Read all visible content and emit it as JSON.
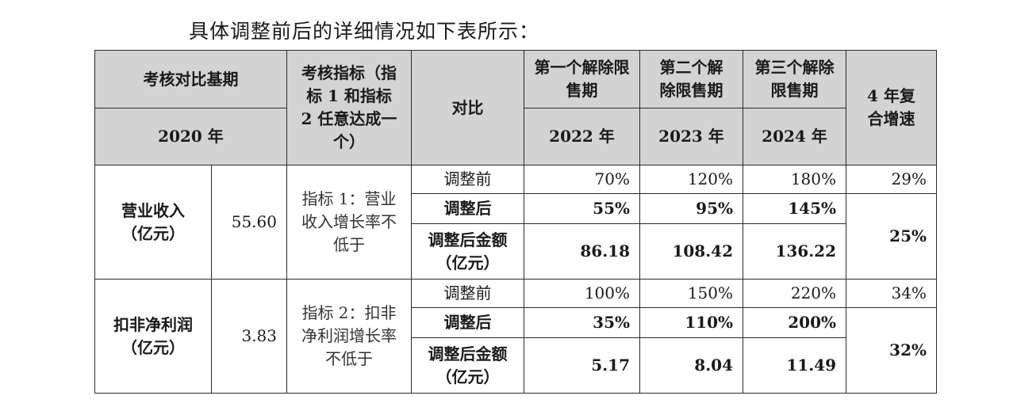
{
  "intro_text": "具体调整前后的详细情况如下表所示：",
  "header": {
    "base_period": "考核对比基期",
    "base_year": "2020 年",
    "indicator": "考核指标（指标 1 和指标 2 任意达成一个）",
    "compare": "对比",
    "period1": "第一个解除限售期",
    "period2": "第二个解除限售期",
    "period3": "第三个解除限售期",
    "year1": "2022 年",
    "year2": "2023 年",
    "year3": "2024 年",
    "cagr": "4 年复合增速"
  },
  "rows": [
    {
      "metric": "营业收入（亿元）",
      "base_value": "55.60",
      "indicator": "指标 1：营业收入增长率不低于",
      "before": {
        "label": "调整前",
        "y1": "70%",
        "y2": "120%",
        "y3": "180%",
        "cagr": "29%"
      },
      "after": {
        "label": "调整后",
        "y1": "55%",
        "y2": "95%",
        "y3": "145%"
      },
      "amount": {
        "label": "调整后金额（亿元）",
        "y1": "86.18",
        "y2": "108.42",
        "y3": "136.22"
      },
      "after_cagr": "25%"
    },
    {
      "metric": "扣非净利润（亿元）",
      "base_value": "3.83",
      "indicator": "指标 2：扣非净利润增长率不低于",
      "before": {
        "label": "调整前",
        "y1": "100%",
        "y2": "150%",
        "y3": "220%",
        "cagr": "34%"
      },
      "after": {
        "label": "调整后",
        "y1": "35%",
        "y2": "110%",
        "y3": "200%"
      },
      "amount": {
        "label": "调整后金额（亿元）",
        "y1": "5.17",
        "y2": "8.04",
        "y3": "11.49"
      },
      "after_cagr": "32%"
    }
  ]
}
